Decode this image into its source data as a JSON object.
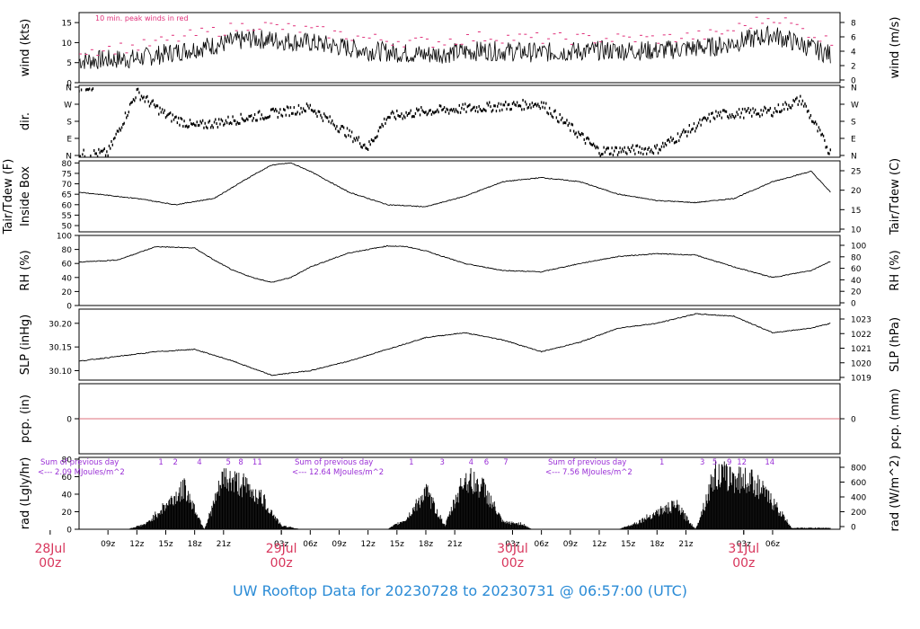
{
  "colors": {
    "axis": "#000000",
    "series": "#000000",
    "peak": "#e0307a",
    "zero_line": "#d04050",
    "annotation": "#9a2fd6",
    "date_label": "#d8365c",
    "footer": "#2a8bd6"
  },
  "footer": {
    "title": "UW Rooftop Data for 20230728  to  20230731 @ 06:57:00  (UTC)"
  },
  "time_axis": {
    "hour_ticks": [
      "09z",
      "12z",
      "15z",
      "18z",
      "21z",
      "03z",
      "06z",
      "09z",
      "12z",
      "15z",
      "18z",
      "21z",
      "03z",
      "06z",
      "09z",
      "12z",
      "15z",
      "18z",
      "21z",
      "03z",
      "06z"
    ],
    "day_labels": [
      {
        "date": "28Jul",
        "time": "00z"
      },
      {
        "date": "29Jul",
        "time": "00z"
      },
      {
        "date": "30Jul",
        "time": "00z"
      },
      {
        "date": "31Jul",
        "time": "00z"
      }
    ]
  },
  "chart_data": [
    {
      "id": "wind",
      "type": "line",
      "ylabel_left": "wind (kts)",
      "ylabel_right": "wind (m/s)",
      "left_ticks": [
        "0",
        "5",
        "10",
        "15"
      ],
      "right_ticks": [
        "0",
        "2",
        "4",
        "6",
        "8"
      ],
      "annotation": "10 min. peak winds in red",
      "ylim": [
        0,
        17.5
      ],
      "series": [
        {
          "name": "wind",
          "x": [
            0,
            6,
            12,
            18,
            24,
            30,
            36,
            42,
            48,
            54,
            60,
            66,
            72,
            78
          ],
          "y": [
            5.5,
            6,
            8.5,
            11,
            10,
            8,
            7,
            8,
            7.5,
            8,
            8,
            9,
            12,
            7
          ]
        },
        {
          "name": "10 min. peak winds",
          "x": [
            0,
            6,
            12,
            18,
            24,
            30,
            36,
            42,
            48,
            54,
            60,
            66,
            72,
            78
          ],
          "y": [
            8,
            9,
            12,
            14.5,
            13,
            11,
            10,
            11.5,
            11,
            11,
            11,
            12,
            16.5,
            10
          ]
        }
      ]
    },
    {
      "id": "dir",
      "type": "scatter",
      "ylabel_left": "dir.",
      "left_ticks": [
        "N",
        "E",
        "S",
        "W",
        "N"
      ],
      "right_ticks": [
        "N",
        "E",
        "S",
        "W",
        "N"
      ],
      "ylim": [
        0,
        360
      ],
      "series": [
        {
          "name": "dir",
          "x": [
            0,
            3,
            6,
            9,
            12,
            18,
            24,
            30,
            32,
            36,
            42,
            48,
            54,
            60,
            66,
            72,
            75,
            78
          ],
          "y": [
            10,
            20,
            340,
            220,
            160,
            210,
            260,
            50,
            210,
            240,
            260,
            280,
            30,
            40,
            220,
            240,
            300,
            20
          ]
        }
      ]
    },
    {
      "id": "temp",
      "type": "line",
      "ylabel_left": "Tair/Tdew (F)",
      "ylabel_left2": "Inside Box",
      "ylabel_right": "Tair/Tdew (C)",
      "left_ticks": [
        "50",
        "55",
        "60",
        "65",
        "70",
        "75",
        "80"
      ],
      "right_ticks": [
        "10",
        "15",
        "20",
        "25"
      ],
      "ylim": [
        47,
        81
      ],
      "series": [
        {
          "name": "Tair",
          "x": [
            0,
            6,
            10,
            14,
            18,
            20,
            22,
            24,
            28,
            32,
            36,
            40,
            44,
            48,
            52,
            56,
            60,
            64,
            68,
            72,
            76,
            78
          ],
          "y": [
            66,
            63,
            60,
            63,
            74,
            79,
            80,
            76,
            66,
            60,
            59,
            64,
            71,
            73,
            71,
            65,
            62,
            61,
            63,
            71,
            76,
            66
          ]
        }
      ]
    },
    {
      "id": "rh",
      "type": "line",
      "ylabel_left": "RH (%)",
      "ylabel_right": "RH (%)",
      "left_ticks": [
        "0",
        "20",
        "40",
        "60",
        "80",
        "100"
      ],
      "right_ticks": [
        "0",
        "20",
        "40",
        "60",
        "80",
        "100"
      ],
      "ylim": [
        0,
        100
      ],
      "series": [
        {
          "name": "RH",
          "x": [
            0,
            4,
            8,
            12,
            14,
            16,
            18,
            20,
            22,
            24,
            28,
            32,
            34,
            36,
            40,
            44,
            48,
            52,
            56,
            60,
            64,
            68,
            72,
            76,
            78
          ],
          "y": [
            62,
            65,
            84,
            82,
            65,
            50,
            40,
            33,
            40,
            55,
            75,
            85,
            84,
            78,
            60,
            50,
            48,
            60,
            70,
            74,
            72,
            55,
            40,
            50,
            63
          ]
        }
      ]
    },
    {
      "id": "slp",
      "type": "line",
      "ylabel_left": "SLP (inHg)",
      "ylabel_right": "SLP (hPa)",
      "left_ticks": [
        "30.10",
        "30.15",
        "30.20"
      ],
      "right_ticks": [
        "1019",
        "1020",
        "1021",
        "1022",
        "1023"
      ],
      "ylim": [
        30.08,
        30.23
      ],
      "series": [
        {
          "name": "SLP",
          "x": [
            0,
            4,
            8,
            12,
            16,
            20,
            24,
            28,
            32,
            36,
            40,
            44,
            48,
            52,
            56,
            60,
            64,
            68,
            72,
            76,
            78
          ],
          "y": [
            30.12,
            30.13,
            30.14,
            30.145,
            30.12,
            30.09,
            30.1,
            30.12,
            30.145,
            30.17,
            30.18,
            30.165,
            30.14,
            30.16,
            30.19,
            30.2,
            30.22,
            30.215,
            30.18,
            30.19,
            30.2
          ]
        }
      ]
    },
    {
      "id": "pcp",
      "type": "line",
      "ylabel_left": "pcp. (in)",
      "ylabel_right": "pcp. (mm)",
      "left_ticks": [
        "0"
      ],
      "right_ticks": [
        "0"
      ],
      "ylim": [
        -1,
        1
      ],
      "series": [
        {
          "name": "pcp",
          "x": [
            0,
            78
          ],
          "y": [
            0,
            0
          ]
        }
      ]
    },
    {
      "id": "rad",
      "type": "area",
      "ylabel_left": "rad (Lgly/hr)",
      "ylabel_right": "rad (W/m^2)",
      "left_ticks": [
        "0",
        "20",
        "40",
        "60",
        "80"
      ],
      "right_ticks": [
        "0",
        "200",
        "400",
        "600",
        "800"
      ],
      "ylim": [
        0,
        82
      ],
      "day_sums": [
        {
          "title": "Sum of previous day",
          "value": "<--- 2.09 MJoules/m^2"
        },
        {
          "title": "Sum of previous day",
          "value": "<--- 12.64 MJoules/m^2"
        },
        {
          "title": "Sum of previous day",
          "value": "<--- 7.56 MJoules/m^2"
        }
      ],
      "hour_marks": [
        {
          "label": "1",
          "x": 8.5
        },
        {
          "label": "2",
          "x": 10.0
        },
        {
          "label": "4",
          "x": 12.5
        },
        {
          "label": "5",
          "x": 15.5
        },
        {
          "label": "8",
          "x": 16.8
        },
        {
          "label": "11",
          "x": 18.5
        },
        {
          "label": "1",
          "x": 34.5
        },
        {
          "label": "3",
          "x": 37.7
        },
        {
          "label": "4",
          "x": 40.7
        },
        {
          "label": "6",
          "x": 42.3
        },
        {
          "label": "7",
          "x": 44.3
        },
        {
          "label": "1",
          "x": 60.5
        },
        {
          "label": "3",
          "x": 64.7
        },
        {
          "label": "5",
          "x": 66.0
        },
        {
          "label": "9",
          "x": 67.5
        },
        {
          "label": "12",
          "x": 68.8
        },
        {
          "label": "14",
          "x": 71.7
        }
      ],
      "series": [
        {
          "name": "rad",
          "x": [
            5,
            7,
            9,
            11,
            13,
            15,
            17,
            19,
            21,
            22,
            23,
            32,
            34,
            36,
            38,
            40,
            42,
            44,
            46,
            47,
            56,
            58,
            60,
            62,
            64,
            66,
            68,
            70,
            72,
            74
          ],
          "y": [
            0,
            8,
            35,
            60,
            0,
            75,
            65,
            45,
            5,
            3,
            0,
            0,
            15,
            55,
            5,
            75,
            60,
            10,
            8,
            0,
            0,
            10,
            25,
            35,
            0,
            80,
            75,
            70,
            40,
            2
          ]
        }
      ]
    }
  ]
}
